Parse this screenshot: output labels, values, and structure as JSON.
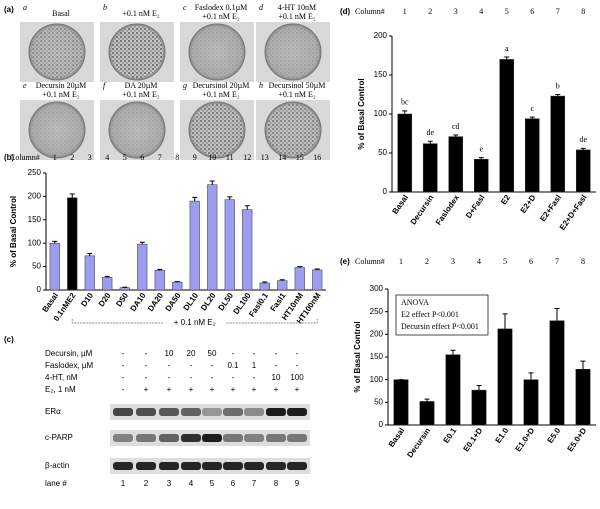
{
  "panel_labels": [
    "(a)",
    "(b)",
    "(c)",
    "(d)",
    "(e)"
  ],
  "panel_a": {
    "dishes": [
      {
        "letter": "a",
        "label": "Basal"
      },
      {
        "letter": "b",
        "label": "+0.1 nM E₂"
      },
      {
        "letter": "c",
        "label": "Faslodex 0.1µM\n+0.1 nM E₂"
      },
      {
        "letter": "d",
        "label": "4-HT 10nM\n+0.1 nM E₂"
      },
      {
        "letter": "e",
        "label": "Decursin 20µM\n+0.1 nM E₂"
      },
      {
        "letter": "f",
        "label": "DA 20µM\n+0.1 nM E₂"
      },
      {
        "letter": "g",
        "label": "Decursinol 20µM\n+0.1 nM E₂"
      },
      {
        "letter": "h",
        "label": "Decursinol 50µM\n+0.1 nM E₂"
      }
    ]
  },
  "panel_c": {
    "treatments": [
      {
        "name": "Decursin, µM",
        "lanes": [
          "-",
          "-",
          "10",
          "20",
          "50",
          "-",
          "-",
          "-",
          "-"
        ]
      },
      {
        "name": "Faslodex, µM",
        "lanes": [
          "-",
          "-",
          "-",
          "-",
          "-",
          "0.1",
          "1",
          "-",
          "-"
        ]
      },
      {
        "name": "4-HT, nM",
        "lanes": [
          "-",
          "-",
          "-",
          "-",
          "-",
          "-",
          "-",
          "10",
          "100"
        ]
      },
      {
        "name": "E₂, 1 nM",
        "lanes": [
          "-",
          "+",
          "+",
          "+",
          "+",
          "+",
          "+",
          "+",
          "+"
        ]
      }
    ],
    "blots": [
      "ERα",
      "c-PARP",
      "β-actin"
    ],
    "lane_label": "lane #",
    "lanes": [
      1,
      2,
      3,
      4,
      5,
      6,
      7,
      8,
      9
    ]
  },
  "chart_data": [
    {
      "type": "bar",
      "column_label": "Column#",
      "columns": [
        1,
        2,
        3,
        4,
        5,
        6,
        7,
        8,
        9,
        10,
        11,
        12,
        13,
        14,
        15,
        16
      ],
      "y_label": "% of Basal Control",
      "categories": [
        "Basal",
        "0.1nME2",
        "D10",
        "D20",
        "D50",
        "DA10",
        "DA20",
        "DA50",
        "DL10",
        "DL20",
        "DL50",
        "DL100",
        "Fasl0.1",
        "Fasl1",
        "HT10nM",
        "HT100nM"
      ],
      "values": [
        100,
        197,
        73,
        27,
        5,
        98,
        42,
        17,
        190,
        225,
        193,
        172,
        15,
        20,
        48,
        43
      ],
      "errors": [
        4,
        8,
        5,
        2,
        1,
        4,
        2,
        1,
        8,
        8,
        6,
        8,
        2,
        2,
        2,
        2
      ],
      "colors": [
        "#9c9cf0",
        "#000000",
        "#9c9cf0",
        "#9c9cf0",
        "#9c9cf0",
        "#9c9cf0",
        "#9c9cf0",
        "#9c9cf0",
        "#9c9cf0",
        "#9c9cf0",
        "#9c9cf0",
        "#9c9cf0",
        "#9c9cf0",
        "#9c9cf0",
        "#9c9cf0",
        "#9c9cf0"
      ],
      "ylim": [
        0,
        250
      ],
      "yticks": [
        0,
        50,
        100,
        150,
        200,
        250
      ],
      "bracket_label": "+ 0.1 nM E₂"
    },
    {
      "type": "bar",
      "column_label": "Column#",
      "columns": [
        1,
        2,
        3,
        4,
        5,
        6,
        7,
        8
      ],
      "y_label": "% of Basal Control",
      "categories": [
        "Basal",
        "Decursin",
        "Faslodex",
        "D+Fasl",
        "E2",
        "E2+D",
        "E2+Fasl",
        "E2+D+Fasl"
      ],
      "values": [
        100,
        62,
        71,
        42,
        170,
        94,
        123,
        54
      ],
      "errors": [
        4,
        3,
        2,
        2,
        3,
        2,
        2,
        2
      ],
      "letters": [
        "bc",
        "de",
        "cd",
        "e",
        "a",
        "c",
        "b",
        "de"
      ],
      "color": "#000000",
      "ylim": [
        0,
        200
      ],
      "yticks": [
        0,
        50,
        100,
        150,
        200
      ]
    },
    {
      "type": "bar",
      "column_label": "Column#",
      "columns": [
        1,
        2,
        3,
        4,
        5,
        6,
        7,
        8
      ],
      "y_label": "% of Basal Control",
      "categories": [
        "Basal",
        "Decursin",
        "E0.1",
        "E0.1+D",
        "E1.0",
        "E1.0+D",
        "E5.0",
        "E5.0+D"
      ],
      "values": [
        100,
        52,
        155,
        77,
        212,
        100,
        230,
        123
      ],
      "errors": [
        0,
        5,
        10,
        10,
        33,
        15,
        27,
        18
      ],
      "annotation": [
        "ANOVA",
        "E2 effect P<0.001",
        "Decursin effect P<0.001"
      ],
      "color": "#000000",
      "ylim": [
        0,
        300
      ],
      "yticks": [
        0,
        50,
        100,
        150,
        200,
        250,
        300
      ]
    }
  ]
}
